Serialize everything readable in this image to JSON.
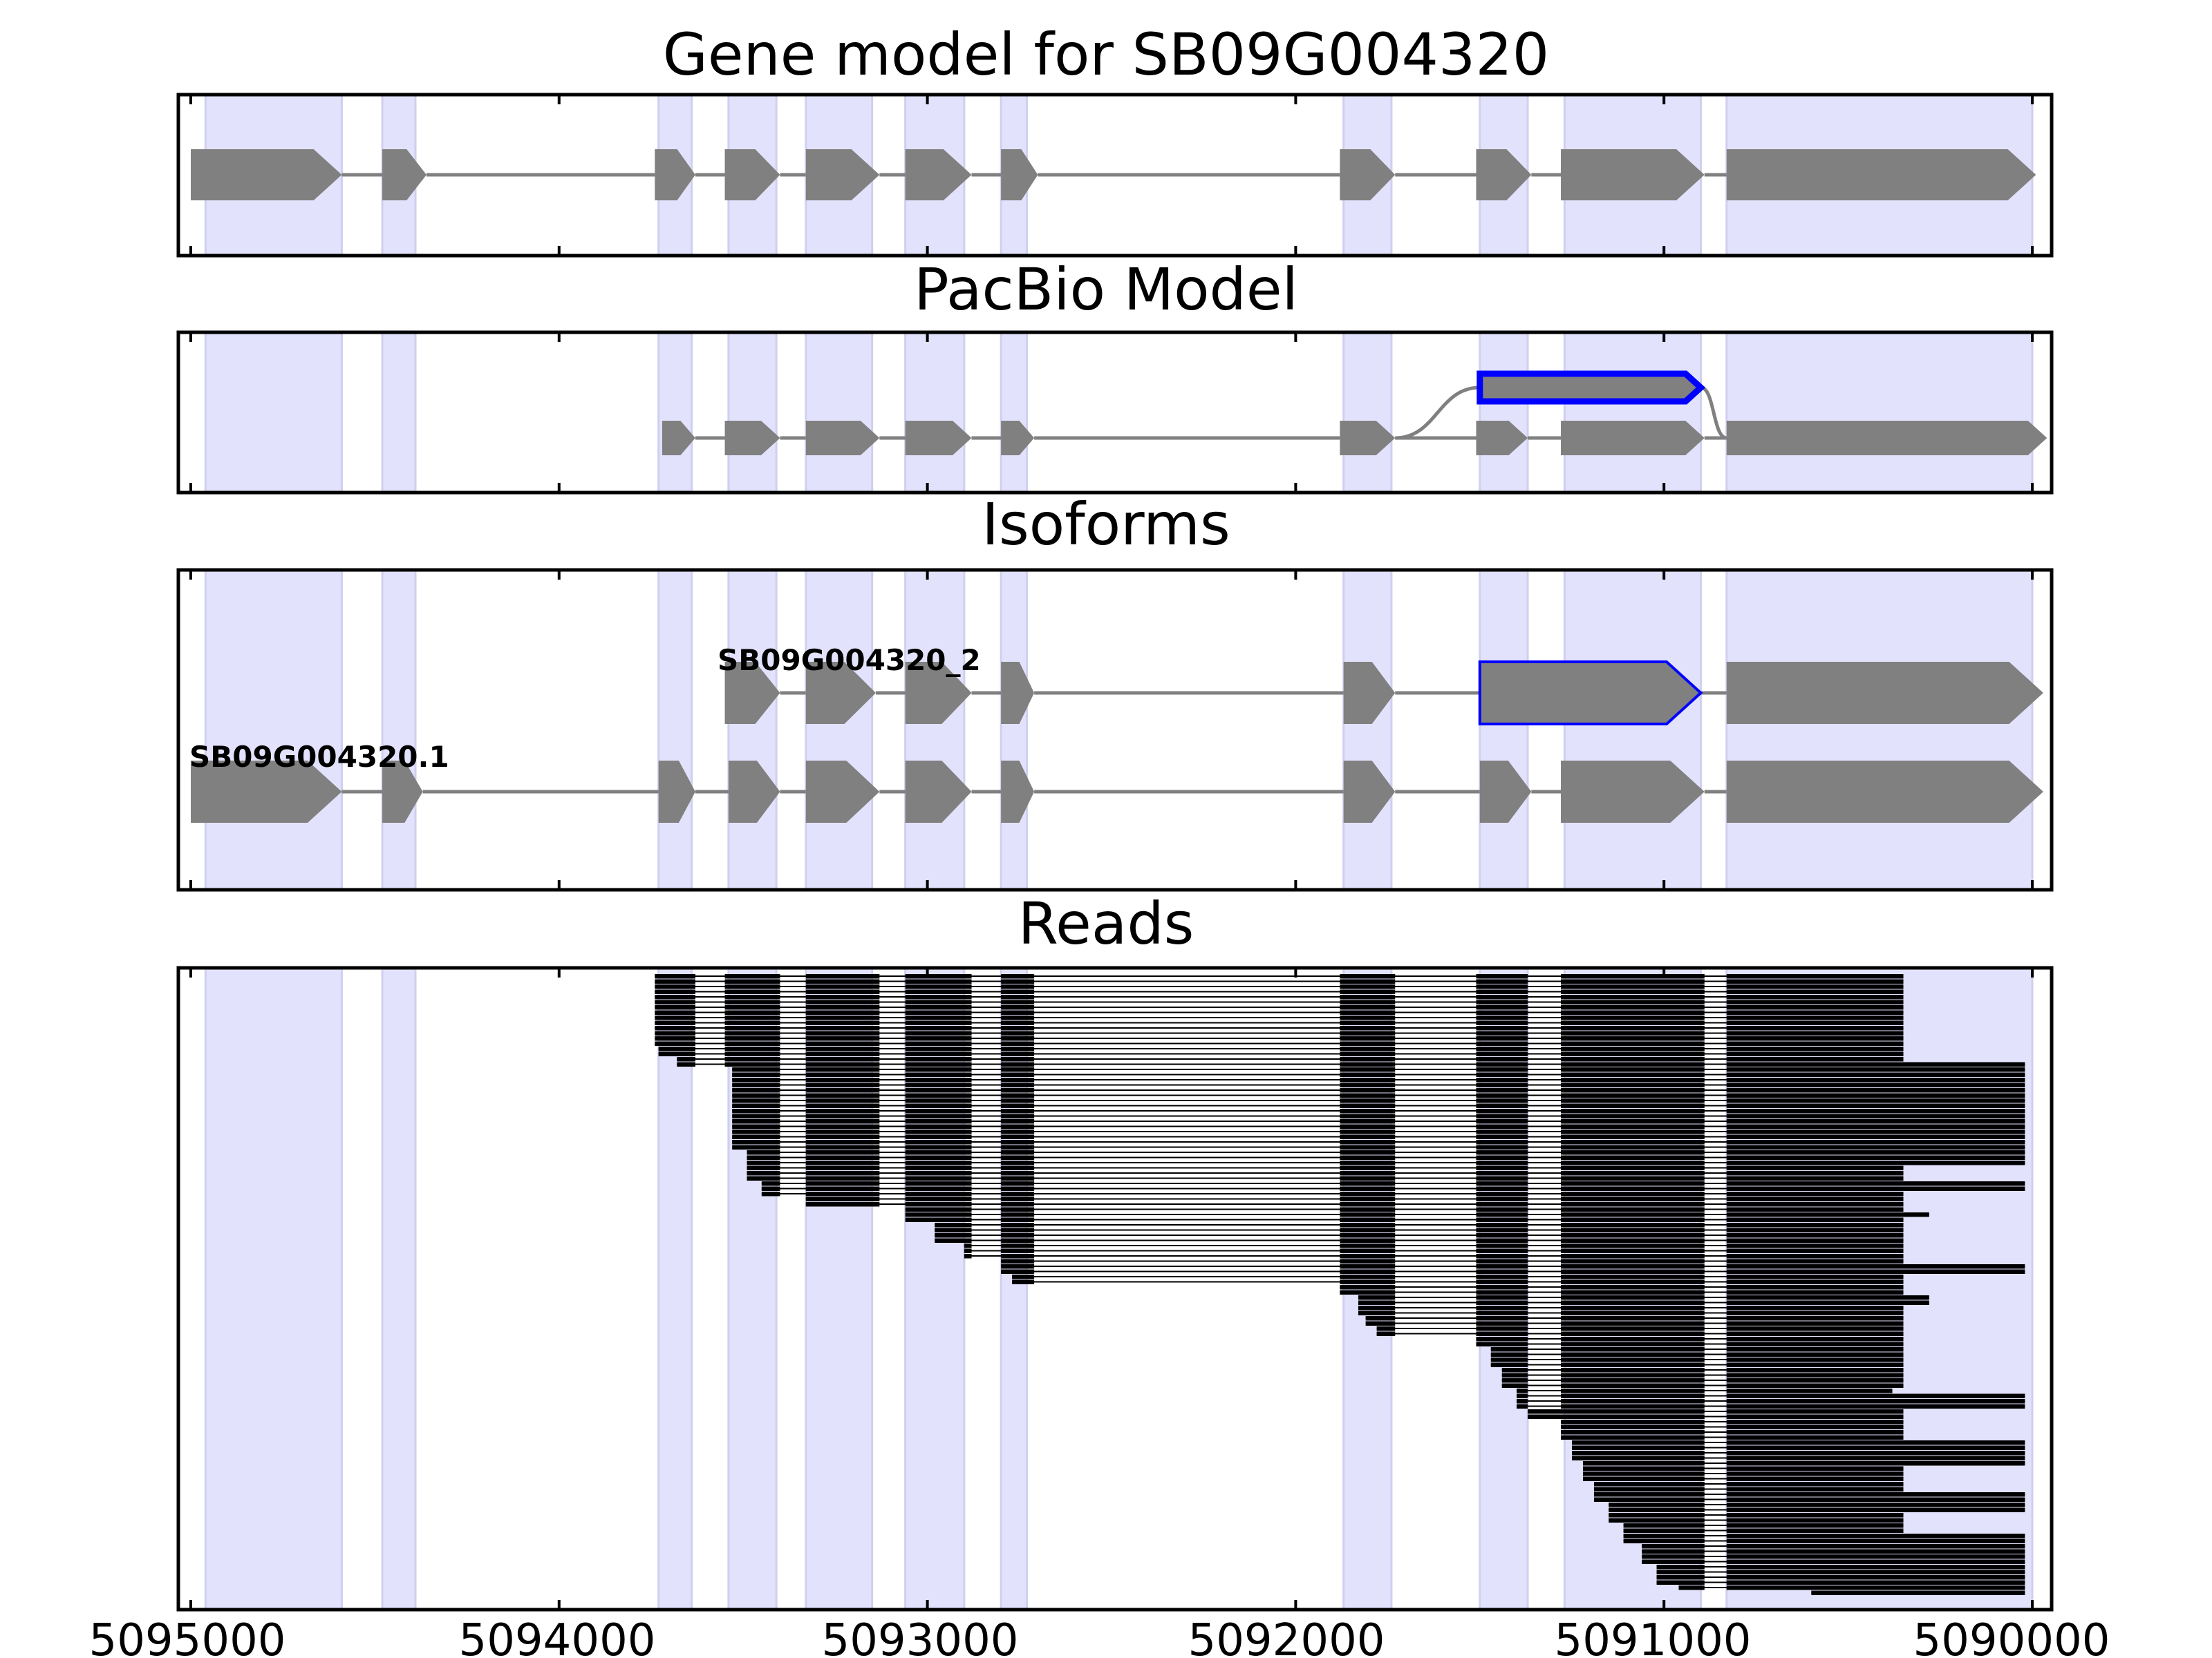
{
  "title": "Gene model for SB09G004320",
  "colors": {
    "exon_band": "#e2e2fc",
    "exon_band_edge": "#cfcfef",
    "feature": "#808080",
    "connector": "#808080",
    "highlight": "#0000ff",
    "read": "#000000",
    "axis": "#000000"
  },
  "panels": {
    "gene_model": {
      "title": "Gene model for SB09G004320"
    },
    "pacbio": {
      "title": "PacBio Model"
    },
    "isoforms": {
      "title": "Isoforms",
      "labels": [
        "SB09G004320_2",
        "SB09G004320.1"
      ]
    },
    "reads": {
      "title": "Reads"
    }
  },
  "chart_data": {
    "type": "genome-track",
    "x_axis": {
      "range": [
        5095000,
        5090000
      ],
      "reversed": true,
      "ticks": [
        5095000,
        5094000,
        5093000,
        5092000,
        5091000,
        5090000
      ],
      "tick_labels": [
        "5095000",
        "5094000",
        "5093000",
        "5092000",
        "5091000",
        "5090000"
      ]
    },
    "exon_regions": [
      [
        5094960,
        5094590
      ],
      [
        5094480,
        5094390
      ],
      [
        5093730,
        5093640
      ],
      [
        5093540,
        5093410
      ],
      [
        5093330,
        5093150
      ],
      [
        5093060,
        5092900
      ],
      [
        5092800,
        5092730
      ],
      [
        5091870,
        5091740
      ],
      [
        5091500,
        5091370
      ],
      [
        5091270,
        5090900
      ],
      [
        5090830,
        5090000
      ]
    ],
    "gene_model_exons": [
      [
        5095000,
        5094590
      ],
      [
        5094480,
        5094360
      ],
      [
        5093740,
        5093630
      ],
      [
        5093550,
        5093400
      ],
      [
        5093330,
        5093130
      ],
      [
        5093060,
        5092880
      ],
      [
        5092800,
        5092700
      ],
      [
        5091880,
        5091730
      ],
      [
        5091510,
        5091360
      ],
      [
        5091280,
        5090890
      ],
      [
        5090830,
        5089990
      ]
    ],
    "pacbio_model": {
      "main_exons": [
        [
          5093720,
          5093630
        ],
        [
          5093550,
          5093400
        ],
        [
          5093330,
          5093130
        ],
        [
          5093060,
          5092880
        ],
        [
          5092800,
          5092710
        ],
        [
          5091880,
          5091730
        ],
        [
          5091510,
          5091370
        ],
        [
          5091280,
          5090890
        ],
        [
          5090830,
          5089960
        ]
      ],
      "alt_exon": [
        5091500,
        5090900
      ]
    },
    "isoforms": [
      {
        "name": "SB09G004320_2",
        "exons": [
          [
            5093550,
            5093400
          ],
          [
            5093330,
            5093140
          ],
          [
            5093060,
            5092880
          ],
          [
            5092800,
            5092710
          ],
          [
            5091870,
            5091730
          ],
          [
            5091500,
            5090900
          ],
          [
            5090830,
            5089970
          ]
        ],
        "highlight_exon": 5
      },
      {
        "name": "SB09G004320.1",
        "exons": [
          [
            5095000,
            5094590
          ],
          [
            5094480,
            5094370
          ],
          [
            5093730,
            5093630
          ],
          [
            5093540,
            5093400
          ],
          [
            5093330,
            5093130
          ],
          [
            5093060,
            5092880
          ],
          [
            5092800,
            5092710
          ],
          [
            5091870,
            5091730
          ],
          [
            5091500,
            5091360
          ],
          [
            5091280,
            5090890
          ],
          [
            5090830,
            5089970
          ]
        ]
      }
    ],
    "reads": {
      "count": 120,
      "introns": [
        [
          5093630,
          5093550
        ],
        [
          5093400,
          5093330
        ],
        [
          5093130,
          5093060
        ],
        [
          5092880,
          5092800
        ],
        [
          5092710,
          5091880
        ],
        [
          5091730,
          5091510
        ],
        [
          5091370,
          5091280
        ],
        [
          5090890,
          5090830
        ]
      ],
      "start_profile": [
        [
          0,
          5093740
        ],
        [
          14,
          5093730
        ],
        [
          16,
          5093680
        ],
        [
          18,
          5093530
        ],
        [
          34,
          5093490
        ],
        [
          40,
          5093450
        ],
        [
          43,
          5093330
        ],
        [
          45,
          5093060
        ],
        [
          48,
          5092980
        ],
        [
          52,
          5092900
        ],
        [
          55,
          5092800
        ],
        [
          58,
          5092770
        ],
        [
          60,
          5091880
        ],
        [
          62,
          5091830
        ],
        [
          66,
          5091810
        ],
        [
          68,
          5091780
        ],
        [
          70,
          5091510
        ],
        [
          72,
          5091470
        ],
        [
          76,
          5091440
        ],
        [
          80,
          5091400
        ],
        [
          84,
          5091370
        ],
        [
          86,
          5091280
        ],
        [
          90,
          5091250
        ],
        [
          94,
          5091220
        ],
        [
          98,
          5091190
        ],
        [
          102,
          5091150
        ],
        [
          106,
          5091110
        ],
        [
          110,
          5091060
        ],
        [
          114,
          5091020
        ],
        [
          118,
          5090960
        ],
        [
          119,
          5090600
        ]
      ],
      "end_profile": [
        [
          0,
          5090350
        ],
        [
          16,
          5090350
        ],
        [
          17,
          5090020
        ],
        [
          36,
          5090020
        ],
        [
          37,
          5090350
        ],
        [
          40,
          5090020
        ],
        [
          42,
          5090350
        ],
        [
          46,
          5090280
        ],
        [
          47,
          5090350
        ],
        [
          56,
          5090020
        ],
        [
          58,
          5090350
        ],
        [
          62,
          5090280
        ],
        [
          64,
          5090350
        ],
        [
          80,
          5090380
        ],
        [
          81,
          5090020
        ],
        [
          84,
          5090350
        ],
        [
          90,
          5090020
        ],
        [
          95,
          5090350
        ],
        [
          100,
          5090020
        ],
        [
          104,
          5090350
        ],
        [
          108,
          5090020
        ],
        [
          119,
          5090020
        ]
      ]
    }
  }
}
